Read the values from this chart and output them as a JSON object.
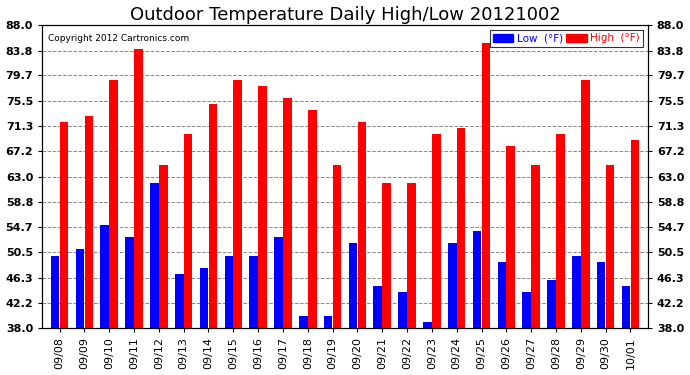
{
  "title": "Outdoor Temperature Daily High/Low 20121002",
  "copyright": "Copyright 2012 Cartronics.com",
  "categories": [
    "09/08",
    "09/09",
    "09/10",
    "09/11",
    "09/12",
    "09/13",
    "09/14",
    "09/15",
    "09/16",
    "09/17",
    "09/18",
    "09/19",
    "09/20",
    "09/21",
    "09/22",
    "09/23",
    "09/24",
    "09/25",
    "09/26",
    "09/27",
    "09/28",
    "09/29",
    "09/30",
    "10/01"
  ],
  "highs": [
    72.0,
    73.0,
    79.0,
    84.0,
    65.0,
    70.0,
    75.0,
    79.0,
    78.0,
    76.0,
    74.0,
    65.0,
    72.0,
    62.0,
    62.0,
    70.0,
    71.0,
    85.0,
    68.0,
    65.0,
    70.0,
    79.0,
    65.0,
    69.0
  ],
  "lows": [
    50.0,
    51.0,
    55.0,
    53.0,
    62.0,
    47.0,
    48.0,
    50.0,
    50.0,
    53.0,
    40.0,
    40.0,
    52.0,
    45.0,
    44.0,
    39.0,
    52.0,
    54.0,
    49.0,
    44.0,
    46.0,
    50.0,
    49.0,
    45.0
  ],
  "high_color": "#ff0000",
  "low_color": "#0000ff",
  "bg_color": "#ffffff",
  "plot_bg_color": "#ffffff",
  "grid_color": "#888888",
  "ylim_min": 38.0,
  "ylim_max": 88.0,
  "yticks": [
    38.0,
    42.2,
    46.3,
    50.5,
    54.7,
    58.8,
    63.0,
    67.2,
    71.3,
    75.5,
    79.7,
    83.8,
    88.0
  ],
  "title_fontsize": 13,
  "tick_fontsize": 8,
  "legend_low_label": "Low  (°F)",
  "legend_high_label": "High  (°F)",
  "bar_width": 0.35
}
